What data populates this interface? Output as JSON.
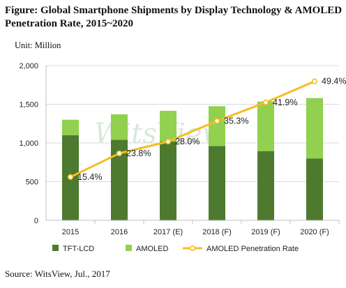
{
  "title": "Figure: Global Smartphone Shipments by Display Technology & AMOLED Penetration Rate, 2015~2020",
  "unit_label": "Unit: Million",
  "source": "Source: WitsView, Jul., 2017",
  "watermark": "WitsView",
  "colors": {
    "tft": "#4d7a2f",
    "amoled": "#92d050",
    "rate": "#f5bd1f",
    "gridline": "#d9d9d9",
    "axis": "#bfbfbf"
  },
  "chart_data": {
    "type": "bar",
    "stacked": true,
    "categories": [
      "2015",
      "2016",
      "2017 (E)",
      "2018 (F)",
      "2019 (F)",
      "2020 (F)"
    ],
    "series": [
      {
        "name": "TFT-LCD",
        "values": [
          1100,
          1040,
          1020,
          960,
          895,
          800
        ]
      },
      {
        "name": "AMOLED",
        "values": [
          200,
          330,
          395,
          515,
          640,
          780
        ]
      }
    ],
    "line_series": {
      "name": "AMOLED Penetration Rate",
      "values": [
        15.4,
        23.8,
        28.0,
        35.3,
        41.9,
        49.4
      ],
      "labels": [
        "15.4%",
        "23.8%",
        "28.0%",
        "35.3%",
        "41.9%",
        "49.4%"
      ],
      "plot_scale_max": 55
    },
    "y_ticks": [
      "0",
      "500",
      "1,000",
      "1,500",
      "2,000"
    ],
    "y_tick_values": [
      0,
      500,
      1000,
      1500,
      2000
    ],
    "ylim": [
      0,
      2000
    ],
    "grid": true,
    "legend_position": "bottom"
  }
}
